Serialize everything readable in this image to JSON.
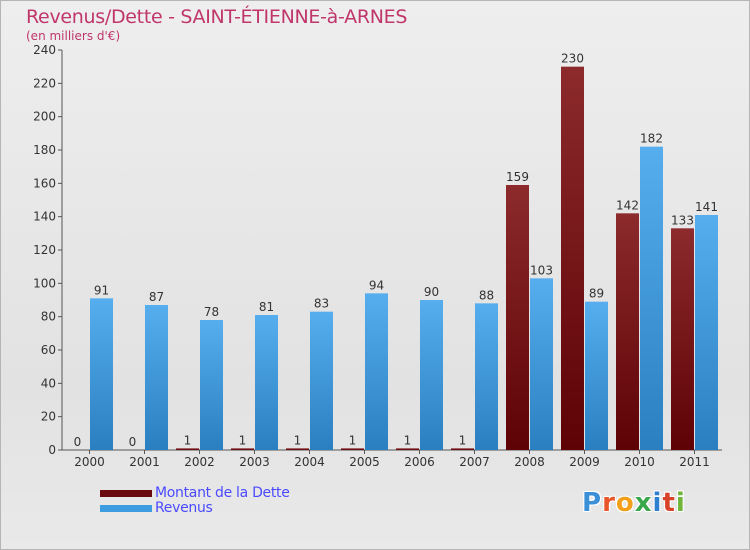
{
  "header": {
    "title": "Revenus/Dette - SAINT-ÉTIENNE-à-ARNES",
    "subtitle": "(en milliers d'€)"
  },
  "chart_data": {
    "type": "bar",
    "title": "Revenus/Dette - SAINT-ÉTIENNE-à-ARNES",
    "ylabel": "(en milliers d'€)",
    "xlabel": "",
    "categories": [
      "2000",
      "2001",
      "2002",
      "2003",
      "2004",
      "2005",
      "2006",
      "2007",
      "2008",
      "2009",
      "2010",
      "2011"
    ],
    "series": [
      {
        "name": "Montant de la Dette",
        "color": "#7a0e12",
        "values": [
          0,
          0,
          1,
          1,
          1,
          1,
          1,
          1,
          159,
          230,
          142,
          133
        ]
      },
      {
        "name": "Revenus",
        "color": "#3d9be0",
        "values": [
          91,
          87,
          78,
          81,
          83,
          94,
          90,
          88,
          103,
          89,
          182,
          141
        ]
      }
    ],
    "ylim": [
      0,
      240
    ],
    "yticks": [
      0,
      20,
      40,
      60,
      80,
      100,
      120,
      140,
      160,
      180,
      200,
      220,
      240
    ],
    "grid": false,
    "legend_position": "bottom-left"
  },
  "legend": {
    "items": [
      {
        "label": "Montant de la Dette",
        "color": "#6b0a0e"
      },
      {
        "label": "Revenus",
        "color": "#3d9be0"
      }
    ]
  },
  "logo": {
    "text": "Proxiti",
    "letters": [
      "P",
      "r",
      "o",
      "x",
      "i",
      "t",
      "i"
    ],
    "colors": [
      "#3a8fd6",
      "#e8562a",
      "#f2a01c",
      "#3aa84a",
      "#2f7fd0",
      "#d8442a",
      "#6fb63a"
    ]
  }
}
